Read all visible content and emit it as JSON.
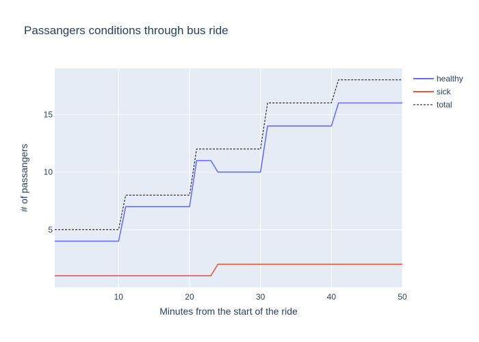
{
  "chart_data": {
    "type": "line",
    "title": "Passangers conditions through bus ride",
    "xlabel": "Minutes from the start of the ride",
    "ylabel": "# of passangers",
    "xlim": [
      1,
      50
    ],
    "ylim": [
      0,
      19
    ],
    "xticks": [
      10,
      20,
      30,
      40,
      50
    ],
    "yticks": [
      5,
      10,
      15
    ],
    "grid": true,
    "legend_position": "top-right",
    "series": [
      {
        "name": "healthy",
        "color": "#636efa",
        "dash": "solid",
        "points": [
          [
            1,
            4
          ],
          [
            10,
            4
          ],
          [
            11,
            7
          ],
          [
            20,
            7
          ],
          [
            21,
            11
          ],
          [
            23,
            11
          ],
          [
            24,
            10
          ],
          [
            30,
            10
          ],
          [
            31,
            14
          ],
          [
            40,
            14
          ],
          [
            41,
            16
          ],
          [
            50,
            16
          ]
        ]
      },
      {
        "name": "sick",
        "color": "#ef553b",
        "dash": "solid",
        "points": [
          [
            1,
            1
          ],
          [
            23,
            1
          ],
          [
            24,
            2
          ],
          [
            50,
            2
          ]
        ]
      },
      {
        "name": "total",
        "color": "#000000",
        "dash": "dotted",
        "points": [
          [
            1,
            5
          ],
          [
            10,
            5
          ],
          [
            11,
            8
          ],
          [
            20,
            8
          ],
          [
            21,
            12
          ],
          [
            30,
            12
          ],
          [
            31,
            16
          ],
          [
            40,
            16
          ],
          [
            41,
            18
          ],
          [
            50,
            18
          ]
        ]
      }
    ]
  }
}
